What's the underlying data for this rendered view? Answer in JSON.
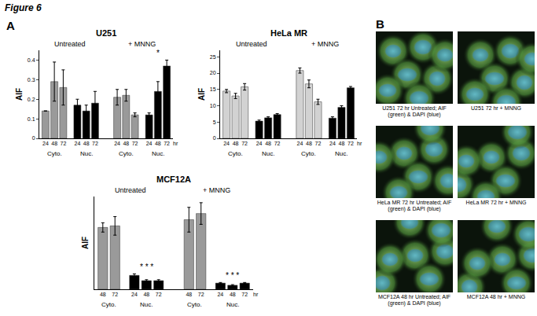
{
  "title": "Figure 6",
  "panel_labels": [
    "A",
    "B"
  ],
  "chart_data": [
    {
      "type": "bar",
      "title": "U251",
      "y_label": "AIF",
      "x_unit": "hr",
      "ylim": [
        0,
        0.45
      ],
      "yticks": [
        0,
        0.1,
        0.2,
        0.3,
        0.4
      ],
      "grid": false,
      "sections": [
        {
          "label": "Untreated",
          "groups": [
            {
              "label": "Cyto.",
              "color": "#9a9a9a",
              "categories": [
                "24",
                "48",
                "72"
              ],
              "values": [
                0.14,
                0.29,
                0.26
              ],
              "errors": [
                0.0,
                0.1,
                0.09
              ]
            },
            {
              "label": "Nuc.",
              "color": "#000000",
              "categories": [
                "24",
                "48",
                "72"
              ],
              "values": [
                0.17,
                0.14,
                0.18
              ],
              "errors": [
                0.03,
                0.03,
                0.06
              ]
            }
          ]
        },
        {
          "label": "+ MNNG",
          "groups": [
            {
              "label": "Cyto.",
              "color": "#9a9a9a",
              "categories": [
                "24",
                "48",
                "72"
              ],
              "values": [
                0.21,
                0.22,
                0.12
              ],
              "errors": [
                0.04,
                0.03,
                0.01
              ]
            },
            {
              "label": "Nuc.",
              "color": "#000000",
              "categories": [
                "24",
                "48",
                "72"
              ],
              "values": [
                0.12,
                0.24,
                0.37
              ],
              "errors": [
                0.01,
                0.05,
                0.03
              ],
              "annotation": "*"
            }
          ]
        }
      ]
    },
    {
      "type": "bar",
      "title": "HeLa MR",
      "y_label": "AIF",
      "x_unit": "hr",
      "ylim": [
        0,
        27
      ],
      "yticks": [
        0,
        5,
        10,
        15,
        20,
        25
      ],
      "grid": false,
      "sections": [
        {
          "label": "Untreated",
          "groups": [
            {
              "label": "Cyto.",
              "color": "#d2d2d2",
              "categories": [
                "24",
                "48",
                "72"
              ],
              "values": [
                14.5,
                13,
                15.8
              ],
              "errors": [
                0.5,
                0.8,
                1.0
              ]
            },
            {
              "label": "Nuc.",
              "color": "#000000",
              "categories": [
                "24",
                "48",
                "72"
              ],
              "values": [
                5.3,
                6.3,
                7.3
              ],
              "errors": [
                0.3,
                0.3,
                0.3
              ]
            }
          ]
        },
        {
          "label": "+ MNNG",
          "groups": [
            {
              "label": "Cyto.",
              "color": "#d2d2d2",
              "categories": [
                "24",
                "48",
                "72"
              ],
              "values": [
                20.8,
                16.7,
                11.2
              ],
              "errors": [
                0.8,
                1.2,
                0.8
              ]
            },
            {
              "label": "Nuc.",
              "color": "#000000",
              "categories": [
                "24",
                "48",
                "72"
              ],
              "values": [
                6.2,
                9.5,
                15.5
              ],
              "errors": [
                0.4,
                0.5,
                0.4
              ]
            }
          ]
        }
      ]
    },
    {
      "type": "bar",
      "title": "MCF12A",
      "y_label": "AIF",
      "x_unit": "hr",
      "ylim": [
        0,
        3
      ],
      "tick_labels": "x",
      "grid": false,
      "sections": [
        {
          "label": "Untreated",
          "groups": [
            {
              "label": "Cyto.",
              "color": "#9a9a9a",
              "categories": [
                "48",
                "72"
              ],
              "values": [
                2.0,
                2.05
              ],
              "errors": [
                0.15,
                0.3
              ]
            },
            {
              "label": "Nuc.",
              "color": "#000000",
              "categories": [
                "24",
                "48",
                "72"
              ],
              "values": [
                0.45,
                0.28,
                0.28
              ],
              "errors": [
                0.05,
                0.03,
                0.03
              ],
              "annotation": "* * *"
            }
          ]
        },
        {
          "label": "+ MNNG",
          "groups": [
            {
              "label": "Cyto.",
              "color": "#9a9a9a",
              "categories": [
                "48",
                "72"
              ],
              "values": [
                2.25,
                2.45
              ],
              "errors": [
                0.4,
                0.35
              ]
            },
            {
              "label": "Nuc.",
              "color": "#000000",
              "categories": [
                "24",
                "48",
                "72"
              ],
              "values": [
                0.2,
                0.13,
                0.2
              ],
              "errors": [
                0.02,
                0.02,
                0.02
              ],
              "annotation": "* * *"
            }
          ]
        }
      ]
    }
  ],
  "images": [
    {
      "caption": "U251 72 hr Untreated; AIF (green) & DAPI (blue)"
    },
    {
      "caption": "U251 72 hr + MNNG"
    },
    {
      "caption": "HeLa MR 72 hr Untreated; AIF (green) & DAPI (blue)"
    },
    {
      "caption": "HeLa MR 72 hr + MNNG"
    },
    {
      "caption": "MCF12A 48 hr Untreated; AIF (green) & DAPI (blue)"
    },
    {
      "caption": "MCF12A 48 hr + MNNG"
    }
  ]
}
